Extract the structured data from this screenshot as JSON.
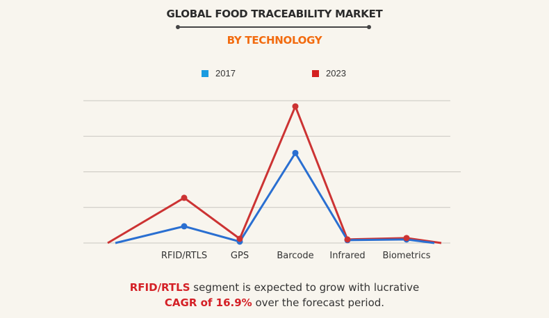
{
  "title": "GLOBAL FOOD TRACEABILITY MARKET",
  "subtitle": "BY TECHNOLOGY",
  "footer": {
    "line1_highlight": "RFID/RTLS",
    "line1_rest": " segment is expected to grow with lucrative",
    "line2_highlight": "CAGR of 16.9%",
    "line2_rest": " over the forecast period."
  },
  "chart_data": {
    "type": "line",
    "title": "GLOBAL FOOD TRACEABILITY MARKET",
    "subtitle": "BY TECHNOLOGY",
    "categories": [
      "RFID/RTLS",
      "GPS",
      "Barcode",
      "Infrared",
      "Biometrics"
    ],
    "series": [
      {
        "name": "2017",
        "color": "#2a6fd1",
        "legend_color": "#1a9be0",
        "values": [
          0.47,
          0.04,
          2.53,
          0.08,
          0.1
        ]
      },
      {
        "name": "2023",
        "color": "#cc3333",
        "legend_color": "#d42020",
        "values": [
          1.27,
          0.12,
          3.84,
          0.1,
          0.14
        ]
      }
    ],
    "ylim": [
      0,
      4
    ],
    "y_axis_labels_shown": false,
    "grid": true,
    "legend_placement": "top"
  }
}
